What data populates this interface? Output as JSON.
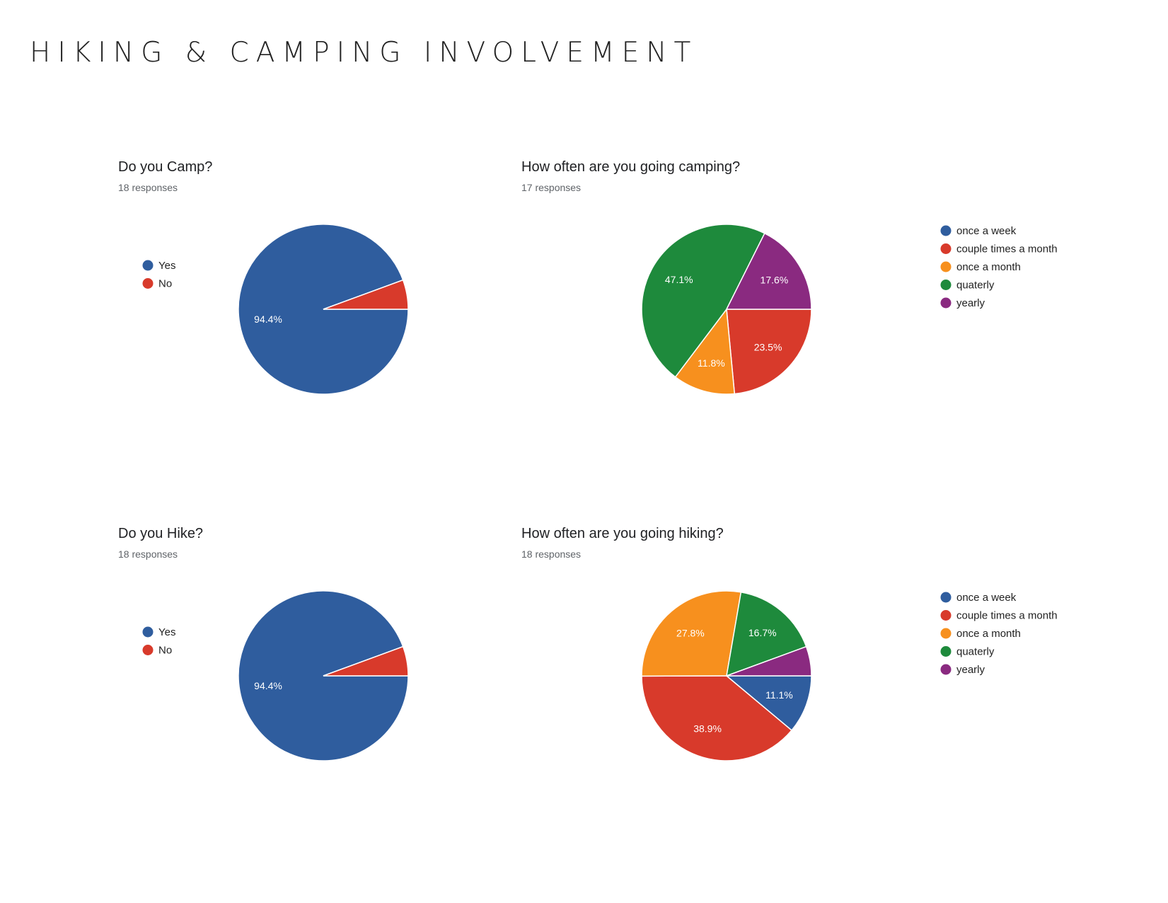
{
  "page": {
    "title": "HIKING & CAMPING INVOLVEMENT"
  },
  "colors": {
    "blue": "#2f5d9e",
    "red": "#d83a2b",
    "orange": "#f7901e",
    "green": "#1e8a3c",
    "purple": "#8a2a80"
  },
  "chart_data": [
    {
      "type": "pie",
      "title": "Do you Camp?",
      "subtitle": "18 responses",
      "legend_position": "left",
      "slices": [
        {
          "label": "Yes",
          "value": 94.4,
          "display": "94.4%",
          "color": "#2f5d9e"
        },
        {
          "label": "No",
          "value": 5.6,
          "display": "",
          "color": "#d83a2b"
        }
      ]
    },
    {
      "type": "pie",
      "title": "How often are you going camping?",
      "subtitle": "17 responses",
      "legend_position": "right",
      "slices": [
        {
          "label": "once a week",
          "value": 0,
          "display": "",
          "color": "#2f5d9e"
        },
        {
          "label": "couple times a month",
          "value": 23.5,
          "display": "23.5%",
          "color": "#d83a2b"
        },
        {
          "label": "once a month",
          "value": 11.8,
          "display": "11.8%",
          "color": "#f7901e"
        },
        {
          "label": "quaterly",
          "value": 47.1,
          "display": "47.1%",
          "color": "#1e8a3c"
        },
        {
          "label": "yearly",
          "value": 17.6,
          "display": "17.6%",
          "color": "#8a2a80"
        }
      ]
    },
    {
      "type": "pie",
      "title": "Do you Hike?",
      "subtitle": "18 responses",
      "legend_position": "left",
      "slices": [
        {
          "label": "Yes",
          "value": 94.4,
          "display": "94.4%",
          "color": "#2f5d9e"
        },
        {
          "label": "No",
          "value": 5.6,
          "display": "",
          "color": "#d83a2b"
        }
      ]
    },
    {
      "type": "pie",
      "title": "How often are you going hiking?",
      "subtitle": "18 responses",
      "legend_position": "right",
      "slices": [
        {
          "label": "once a week",
          "value": 11.1,
          "display": "11.1%",
          "color": "#2f5d9e"
        },
        {
          "label": "couple times a month",
          "value": 38.9,
          "display": "38.9%",
          "color": "#d83a2b"
        },
        {
          "label": "once a month",
          "value": 27.8,
          "display": "27.8%",
          "color": "#f7901e"
        },
        {
          "label": "quaterly",
          "value": 16.7,
          "display": "16.7%",
          "color": "#1e8a3c"
        },
        {
          "label": "yearly",
          "value": 5.6,
          "display": "",
          "color": "#8a2a80"
        }
      ]
    }
  ]
}
